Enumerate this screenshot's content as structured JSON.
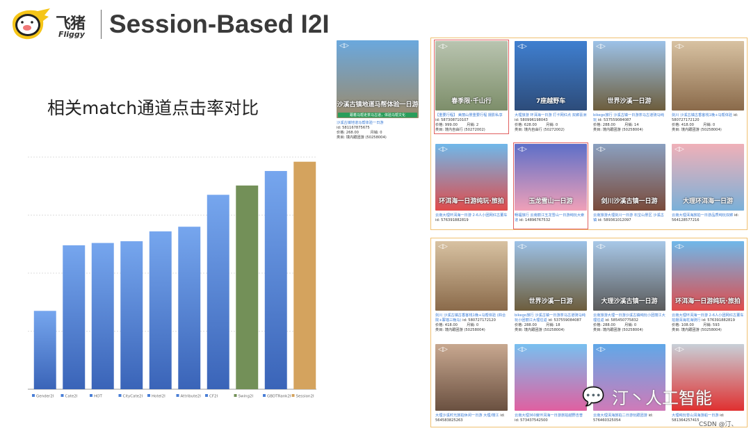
{
  "header": {
    "brand_cn": "飞猪",
    "brand_en": "Fliggy",
    "title": "Session-Based I2I"
  },
  "subtitle": "相关match通道点击率对比",
  "chart_data": {
    "type": "bar",
    "title": "",
    "xlabel": "",
    "ylabel": "",
    "ylim": [
      0,
      4
    ],
    "grid": true,
    "legend": "bottom",
    "categories": [
      "Gender2I",
      "Cate2I",
      "HOT",
      "CityCate2I",
      "Hotel2I",
      "Attribute2I",
      "CF2I",
      "Swing2I",
      "GBDTRank2I",
      "Session2I"
    ],
    "values": [
      1.35,
      2.48,
      2.52,
      2.55,
      2.72,
      2.8,
      3.35,
      3.51,
      3.76,
      3.92
    ],
    "colors": [
      "#4a7fd6",
      "#4a7fd6",
      "#4a7fd6",
      "#4a7fd6",
      "#4a7fd6",
      "#4a7fd6",
      "#4a7fd6",
      "#739058",
      "#4a7fd6",
      "#d4a35e"
    ]
  },
  "query": {
    "overlay": "沙溪古镇地道马帮体验一日游",
    "banner": "跟着马帮走茶马古道，体验马帮文化",
    "title": "沙溪古镇地道马帮体验一日游",
    "id": "id: 581167875675",
    "price": "价格: 268.00",
    "sales": "月销: 0",
    "category": "类目: 境内跟团游 (50258004)",
    "colors": [
      "#6aa8de",
      "#9c8a6a"
    ]
  },
  "panels": [
    {
      "cards": [
        {
          "overlay": "春季限·千山行",
          "title": "【重要行程】 美丽山景重要行程 摄影私享",
          "id": "id: 587308710107",
          "price": "价格: 999.00",
          "sales": "月销: 2",
          "category": "类目: 境内自由行 (50272002)",
          "colors": [
            "#b9c4b0",
            "#7d8e6a"
          ],
          "highlight": true
        },
        {
          "overlay": "7座越野车",
          "title": "大理旅游 环洱海一日游 打卡网红点 双廊喜洲",
          "id": "id: 580996198043",
          "price": "价格: 628.00",
          "sales": "月销: 0",
          "category": "类目: 境内自由行 (50272002)",
          "colors": [
            "#3f7fd0",
            "#2d4c7a"
          ]
        },
        {
          "overlay": "世界沙溪一日游",
          "title": "bikego旅行 沙溪古镇一日游茶马古道骑马纯玩",
          "id": "id: 537559084087",
          "price": "价格: 288.00",
          "sales": "月销: 14",
          "category": "类目: 境内跟团游 (50258004)",
          "colors": [
            "#9cc2e8",
            "#6d5d3c"
          ]
        },
        {
          "overlay": "",
          "title": "剑川 沙溪古镇古香客栈1晚+马帮体验",
          "id": "id: 580727172120",
          "price": "价格: 418.00",
          "sales": "月销: 0",
          "category": "类目: 境内跟团游 (50258004)",
          "colors": [
            "#d8c2a2",
            "#8a6a4a"
          ]
        },
        {
          "overlay": "环洱海一日游纯玩·旅拍",
          "title": "云南大理环洱海一日游 2-6人小团网红古董车",
          "id": "id: 576391882819",
          "price": "",
          "sales": "",
          "category": "",
          "colors": [
            "#6fb8ea",
            "#e04b4b"
          ]
        },
        {
          "overlay": "玉龙雪山一日游",
          "title": "畅福旅行 云南丽江玉龙雪山一日游纯玩大索道",
          "id": "id: 14896767532",
          "price": "",
          "sales": "",
          "category": "",
          "colors": [
            "#5d6fc8",
            "#f0a0b8"
          ],
          "highlight": true
        },
        {
          "overlay": "剑川沙溪古镇一日游",
          "title": "云南旅游大理剑川一日游 石宝山景区 沙溪古镇",
          "id": "id: 589361012097",
          "price": "",
          "sales": "",
          "category": "",
          "colors": [
            "#8aa0c0",
            "#7a4a3a"
          ]
        },
        {
          "overlay": "大理环洱海一日游",
          "title": "云南大理洱海旅拍一日游品质纯玩双廊",
          "id": "id: 564128577216",
          "price": "",
          "sales": "",
          "category": "",
          "colors": [
            "#f0b0b8",
            "#7ab0d8"
          ]
        }
      ]
    },
    {
      "cards": [
        {
          "overlay": "",
          "title": "剑川 沙溪古镇古香客栈1晚+马帮体验 (四合院+寨墙三晚马)",
          "id": "id: 580727172120",
          "price": "价格: 418.00",
          "sales": "月销: 0",
          "category": "类目: 境内跟团游 (50258004)",
          "colors": [
            "#d8c2a2",
            "#8a6a4a"
          ]
        },
        {
          "overlay": "世界沙溪一日游",
          "title": "bikego旅行 沙溪古镇一日游茶马古道骑马纯玩小团丽江大理往返",
          "id": "id: 537559084087",
          "price": "价格: 288.00",
          "sales": "月销: 18",
          "category": "类目: 境内跟团游 (50258004)",
          "colors": [
            "#9cc2e8",
            "#6d5d3c"
          ]
        },
        {
          "overlay": "大理沙溪古镇一日游",
          "title": "云南旅游大理一日游沙溪古镇纯玩小团丽江大理往返",
          "id": "id: 585450775832",
          "price": "价格: 288.00",
          "sales": "月销: 0",
          "category": "类目: 境内跟团游 (50258004)",
          "colors": [
            "#a8c8e8",
            "#5a5a5a"
          ]
        },
        {
          "overlay": "环洱海一日游纯玩·旅拍",
          "title": "云南大理环洱海一日游 2-6人小团网红古董车拍摄洱海花海骑行",
          "id": "id: 576391882819",
          "price": "价格: 108.00",
          "sales": "月销: 593",
          "category": "类目: 境内跟团游 (50258004)",
          "colors": [
            "#6fb8ea",
            "#e04b4b"
          ]
        },
        {
          "overlay": "",
          "title": "大理沙溪时光旅拍休闲一日游 大理/丽江",
          "id": "id: 564583825263",
          "price": "",
          "sales": "",
          "category": "",
          "colors": [
            "#c8a890",
            "#6a5040"
          ]
        },
        {
          "overlay": "",
          "title": "云南大理360度环洱海一日游旅拍越野吉普",
          "id": "id: 573437542500",
          "price": "",
          "sales": "",
          "category": "",
          "colors": [
            "#78c0f0",
            "#e060a0"
          ]
        },
        {
          "overlay": "",
          "title": "云南大理洱海旅拍二日游玩跟团游",
          "id": "id: 576460325054",
          "price": "",
          "sales": "",
          "category": "",
          "colors": [
            "#60a8e8",
            "#d07ab8"
          ]
        },
        {
          "overlay": "",
          "title": "大理纯玩苍山洱海游船一日游",
          "id": "id: 581364257415",
          "price": "",
          "sales": "",
          "category": "",
          "colors": [
            "#c8d0d8",
            "#e03030"
          ]
        }
      ]
    }
  ],
  "watermark": {
    "text": "汀丶人工智能",
    "csdn": "CSDN @汀、"
  }
}
